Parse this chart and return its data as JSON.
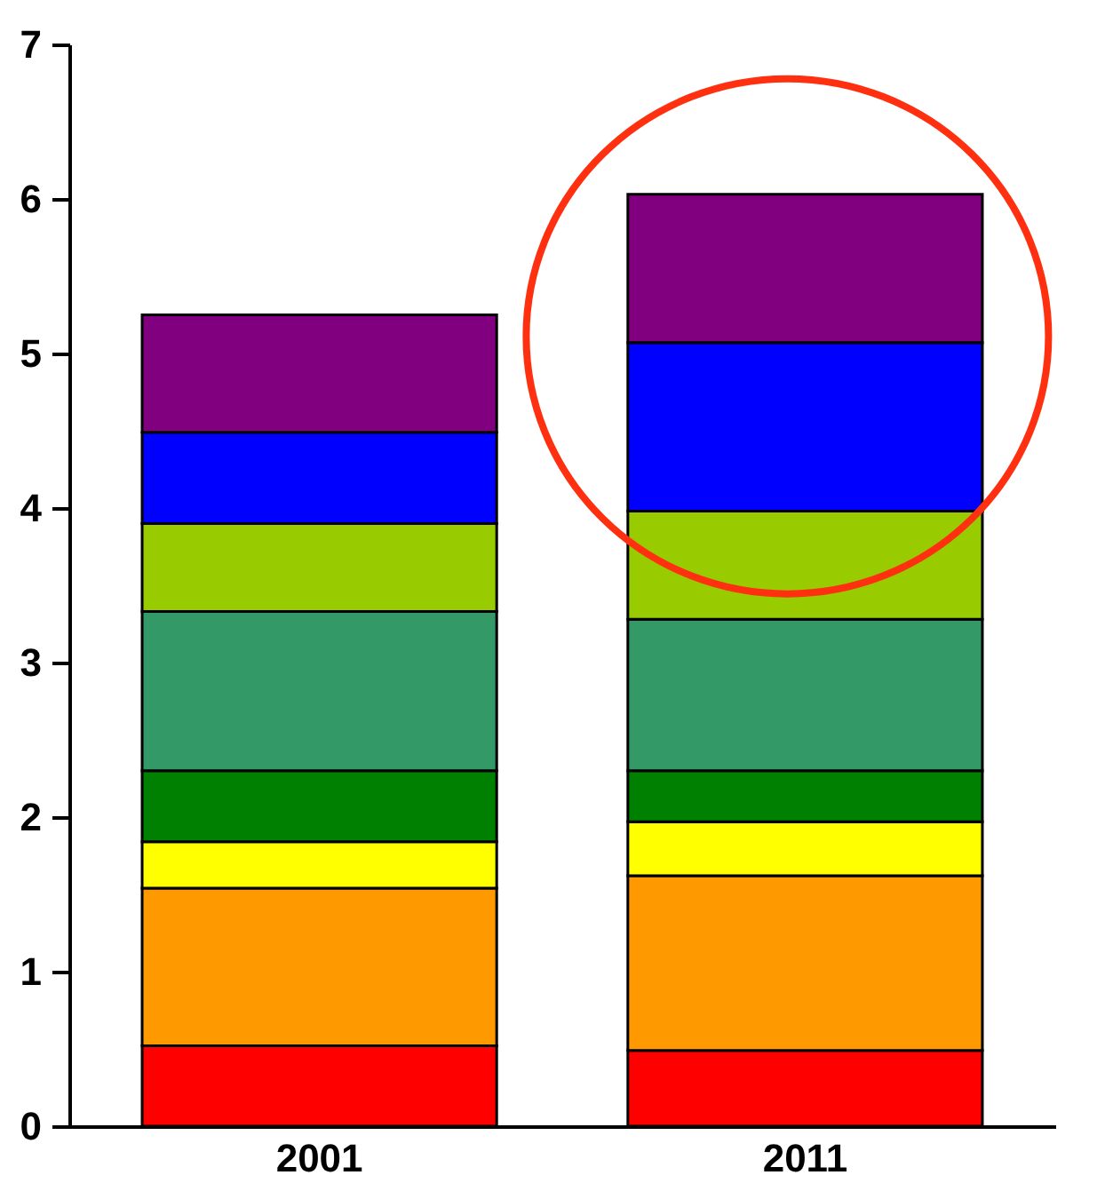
{
  "chart_data": {
    "type": "bar",
    "stacked": true,
    "categories": [
      "2001",
      "2011"
    ],
    "series": [
      {
        "color": "#ff0000",
        "values": [
          0.52,
          0.49
        ]
      },
      {
        "color": "#ff9900",
        "values": [
          1.02,
          1.13
        ]
      },
      {
        "color": "#ffff00",
        "values": [
          0.3,
          0.35
        ]
      },
      {
        "color": "#008000",
        "values": [
          0.46,
          0.33
        ]
      },
      {
        "color": "#339966",
        "values": [
          1.03,
          0.98
        ]
      },
      {
        "color": "#99cc00",
        "values": [
          0.57,
          0.7
        ]
      },
      {
        "color": "#0000ff",
        "values": [
          0.59,
          1.09
        ]
      },
      {
        "color": "#800080",
        "values": [
          0.76,
          0.96
        ]
      }
    ],
    "ylim": [
      0,
      7
    ],
    "yticks": [
      0,
      1,
      2,
      3,
      4,
      5,
      6,
      7
    ],
    "grid": false,
    "legend": false
  }
}
